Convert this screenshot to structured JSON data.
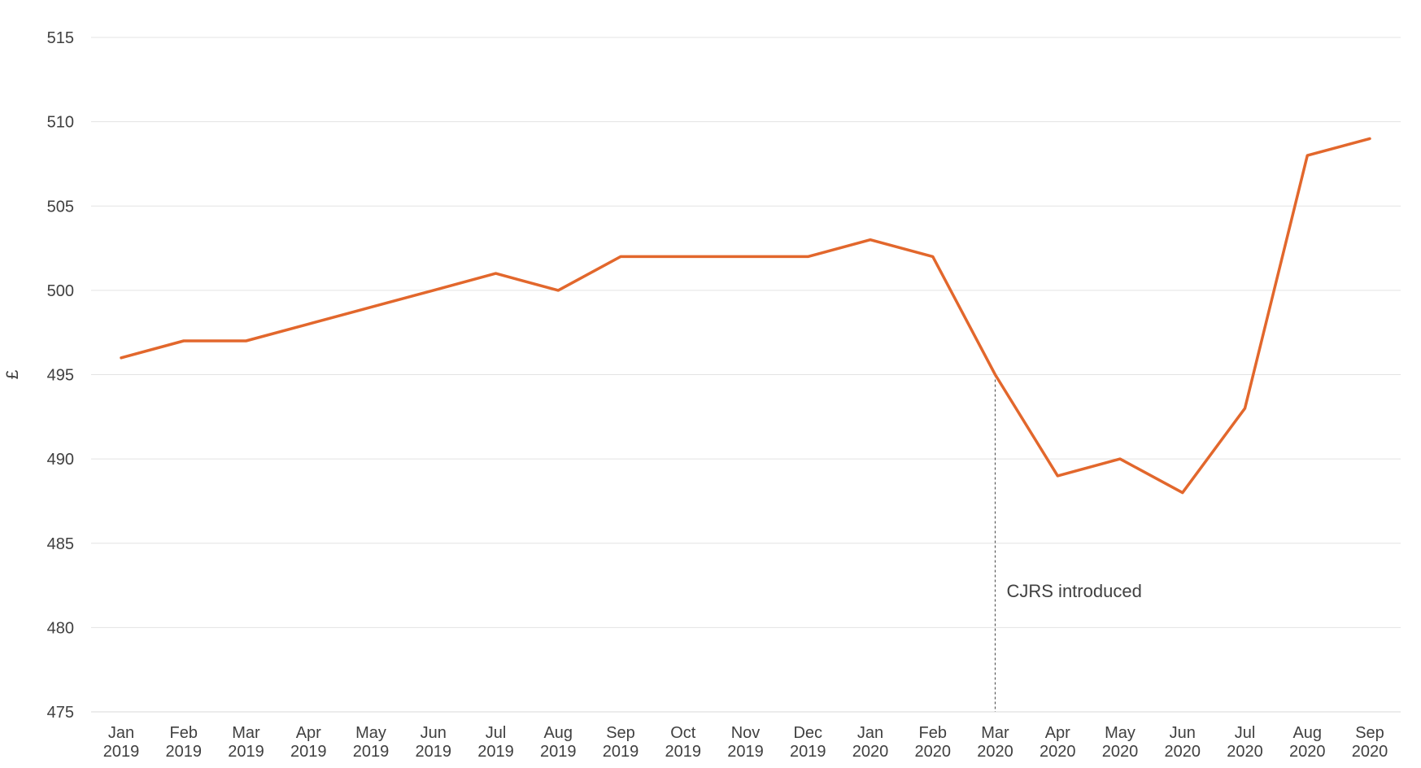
{
  "chart_data": {
    "type": "line",
    "title": "",
    "xlabel": "",
    "ylabel": "£",
    "ylim": [
      475,
      515
    ],
    "yticks": [
      "475",
      "480",
      "485",
      "490",
      "495",
      "500",
      "505",
      "510",
      "515"
    ],
    "grid": true,
    "legend": "none",
    "categories": [
      {
        "month": "Jan",
        "year": "2019"
      },
      {
        "month": "Feb",
        "year": "2019"
      },
      {
        "month": "Mar",
        "year": "2019"
      },
      {
        "month": "Apr",
        "year": "2019"
      },
      {
        "month": "May",
        "year": "2019"
      },
      {
        "month": "Jun",
        "year": "2019"
      },
      {
        "month": "Jul",
        "year": "2019"
      },
      {
        "month": "Aug",
        "year": "2019"
      },
      {
        "month": "Sep",
        "year": "2019"
      },
      {
        "month": "Oct",
        "year": "2019"
      },
      {
        "month": "Nov",
        "year": "2019"
      },
      {
        "month": "Dec",
        "year": "2019"
      },
      {
        "month": "Jan",
        "year": "2020"
      },
      {
        "month": "Feb",
        "year": "2020"
      },
      {
        "month": "Mar",
        "year": "2020"
      },
      {
        "month": "Apr",
        "year": "2020"
      },
      {
        "month": "May",
        "year": "2020"
      },
      {
        "month": "Jun",
        "year": "2020"
      },
      {
        "month": "Jul",
        "year": "2020"
      },
      {
        "month": "Aug",
        "year": "2020"
      },
      {
        "month": "Sep",
        "year": "2020"
      }
    ],
    "series": [
      {
        "color": "#e2672c",
        "values": [
          496,
          497,
          497,
          498,
          499,
          500,
          501,
          500,
          502,
          502,
          502,
          502,
          503,
          502,
          495,
          489,
          490,
          488,
          493,
          508,
          509
        ]
      }
    ],
    "annotations": [
      {
        "text": "CJRS introduced",
        "category_index": 14,
        "from_value": 475,
        "to_value": 495
      }
    ]
  }
}
